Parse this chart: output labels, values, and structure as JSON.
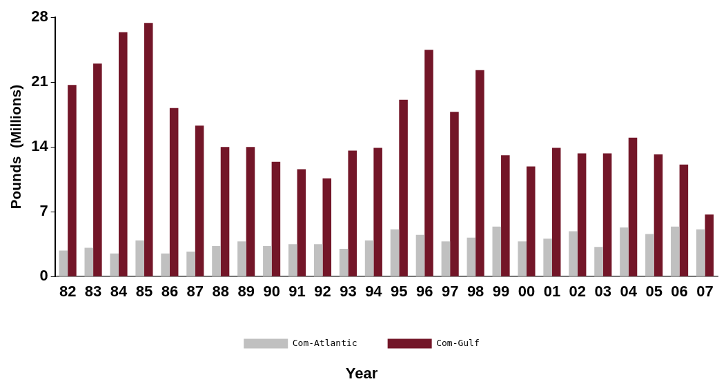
{
  "chart_data": {
    "type": "bar",
    "xlabel": "Year",
    "ylabel": "Pounds  (Millions)",
    "categories": [
      "82",
      "83",
      "84",
      "85",
      "86",
      "87",
      "88",
      "89",
      "90",
      "91",
      "92",
      "93",
      "94",
      "95",
      "96",
      "97",
      "98",
      "99",
      "00",
      "01",
      "02",
      "03",
      "04",
      "05",
      "06",
      "07"
    ],
    "series": [
      {
        "name": "Com-Atlantic",
        "color": "#c0c0c0",
        "values": [
          2.8,
          3.1,
          2.5,
          3.9,
          2.5,
          2.7,
          3.3,
          3.8,
          3.3,
          3.5,
          3.5,
          3.0,
          3.9,
          5.1,
          4.5,
          3.8,
          4.2,
          5.4,
          3.8,
          4.1,
          4.9,
          3.2,
          5.3,
          4.6,
          5.4,
          5.1
        ]
      },
      {
        "name": "Com-Gulf",
        "color": "#731628",
        "values": [
          20.7,
          23.0,
          26.4,
          27.4,
          18.2,
          16.3,
          14.0,
          14.0,
          12.4,
          11.6,
          10.6,
          13.6,
          13.9,
          19.1,
          24.5,
          17.8,
          22.3,
          13.1,
          11.9,
          13.9,
          13.3,
          13.3,
          15.0,
          13.2,
          12.1,
          6.7
        ]
      }
    ],
    "ylim": [
      0,
      28
    ],
    "yticks": [
      0,
      7,
      14,
      21,
      28
    ],
    "grid": false,
    "legend": "bottom"
  }
}
